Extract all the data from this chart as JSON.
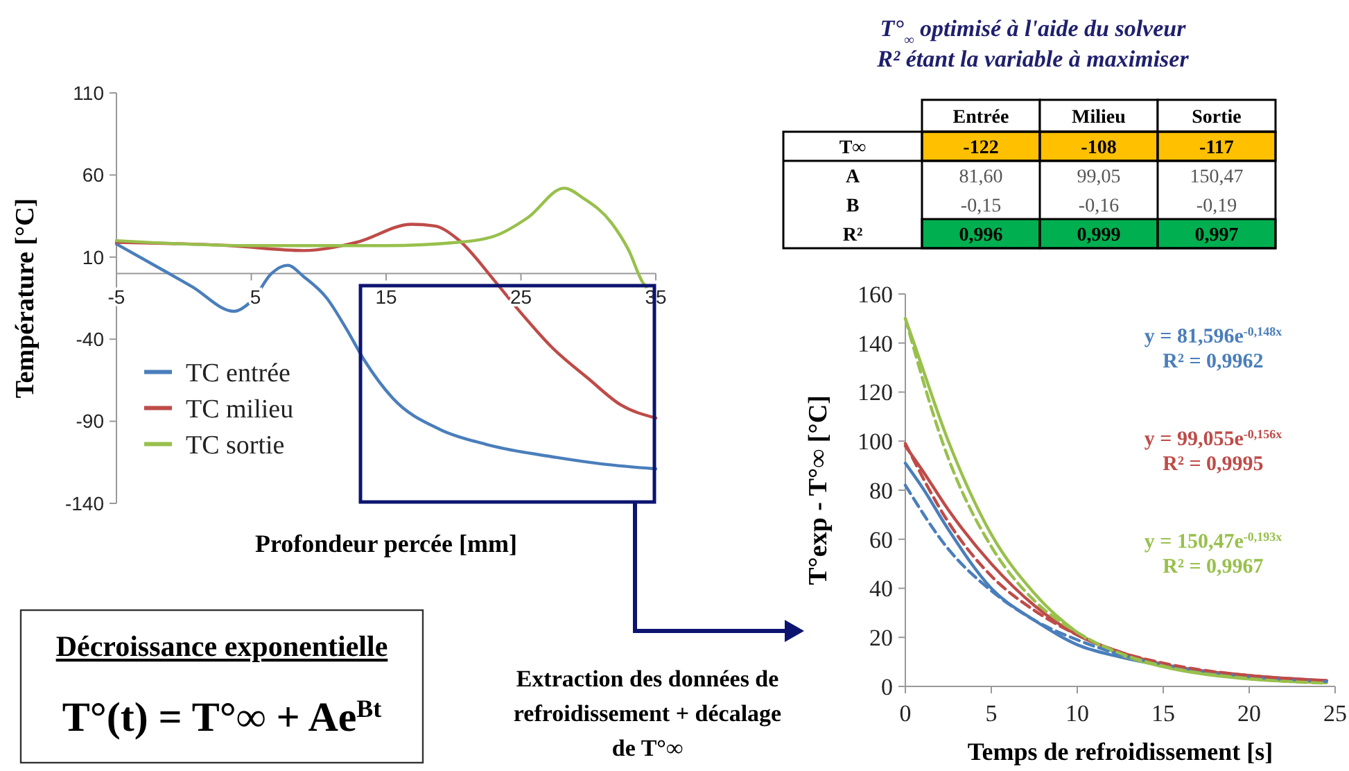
{
  "chart_data": [
    {
      "type": "line",
      "xlabel": "Profondeur percée [mm]",
      "ylabel": "Température [°C]",
      "xlim": [
        -5,
        35
      ],
      "ylim": [
        -140,
        110
      ],
      "xticks": [
        -5,
        5,
        15,
        25,
        35
      ],
      "yticks": [
        -140,
        -90,
        -40,
        10,
        60,
        110
      ],
      "legend": "left",
      "grid": false,
      "annotations": [
        "Extraction des données de refroidissement + décalage de T°∞"
      ],
      "series": [
        {
          "name": "TC entrée",
          "color": "#4a7ebb",
          "x": [
            -5,
            -1.1,
            0.6,
            3.7,
            5.1,
            6.5,
            7.7,
            8.9,
            10.6,
            12,
            13.4,
            15.5,
            19,
            22.4,
            27.6,
            31,
            35
          ],
          "values": [
            18,
            0,
            -8,
            -23,
            -16,
            0,
            5,
            -2,
            -15,
            -33,
            -53,
            -76,
            -95,
            -104,
            -112,
            -116,
            -119
          ]
        },
        {
          "name": "TC milieu",
          "color": "#be4b48",
          "x": [
            -5,
            3.4,
            8.9,
            12.8,
            16.9,
            18.6,
            20.3,
            23.1,
            24.8,
            27.3,
            30,
            32.4,
            35
          ],
          "values": [
            19,
            17,
            14,
            19,
            30,
            29,
            21,
            -5,
            -22,
            -45,
            -64,
            -80,
            -88
          ]
        },
        {
          "name": "TC sortie",
          "color": "#98c04c",
          "x": [
            -5,
            5,
            15,
            20.3,
            23.1,
            25.5,
            28.2,
            29.6,
            31.7,
            33,
            34,
            34.6
          ],
          "values": [
            20,
            17,
            17,
            19,
            23,
            34,
            52,
            46,
            31,
            14,
            -5,
            -11
          ]
        }
      ]
    },
    {
      "type": "line",
      "xlabel": "Temps de refroidissement [s]",
      "ylabel": "T°exp - T°∞ [°C]",
      "xlim": [
        0,
        25
      ],
      "ylim": [
        0,
        160
      ],
      "xticks": [
        0,
        5,
        10,
        15,
        20,
        25
      ],
      "yticks": [
        0,
        20,
        40,
        60,
        80,
        100,
        120,
        140,
        160
      ],
      "grid": false,
      "legend": false,
      "annotations": [
        "y = 81,596e$^{-0,148x}$",
        "R² = 0,9962",
        "y = 99,055e$^{-0,156x}$",
        "R² = 0,9995",
        "y = 150,47e$^{-0,193x}$",
        "R² = 0,9967"
      ],
      "series": [
        {
          "color": "#4a7ebb",
          "x": [
            0,
            1,
            2.5,
            5,
            7.5,
            10,
            12.5,
            15,
            20,
            24.5
          ],
          "values": [
            91,
            81,
            64,
            40,
            27,
            17,
            12,
            8.5,
            4.3,
            2.3
          ]
        },
        {
          "color": "#be4b48",
          "x": [
            0,
            1,
            2.5,
            5,
            7.5,
            10,
            12.5,
            15,
            20,
            24.5
          ],
          "values": [
            98,
            88,
            72,
            50,
            33,
            21,
            14,
            9,
            4.5,
            2.4
          ]
        },
        {
          "color": "#98c04c",
          "x": [
            0,
            0.5,
            2.5,
            5,
            7.5,
            10,
            12.5,
            15,
            20,
            24.5
          ],
          "values": [
            150,
            140,
            100,
            62,
            38,
            22,
            13,
            8,
            3,
            1.5
          ]
        },
        {
          "color": "#4a7ebb",
          "line_style": "dashed",
          "x": [
            0,
            2.5,
            5,
            7.5,
            10,
            12.5,
            15,
            20,
            24.5
          ],
          "values": [
            82,
            56,
            39,
            27,
            19,
            13,
            9,
            4,
            2
          ]
        },
        {
          "color": "#be4b48",
          "line_style": "dashed",
          "x": [
            0,
            2.5,
            5,
            7.5,
            10,
            12.5,
            15,
            20,
            24.5
          ],
          "values": [
            99,
            67,
            45,
            31,
            21,
            14,
            9.5,
            4.4,
            2.2
          ]
        },
        {
          "color": "#98c04c",
          "line_style": "dashed",
          "x": [
            0,
            2.5,
            5,
            7.5,
            10,
            12.5,
            15,
            20,
            24.5
          ],
          "values": [
            150,
            93,
            57,
            35,
            22,
            13.5,
            8.3,
            3.2,
            1.3
          ]
        }
      ]
    },
    {
      "type": "other",
      "title": "T°$_{∞}$ optimisé à l'aide du solveur",
      "subtitle": "R² étant la variable à maximiser",
      "categories": [
        "Entrée",
        "Milieu",
        "Sortie"
      ],
      "y_categories": [
        "T∞",
        "A",
        "B",
        "R²"
      ],
      "cell_labels": [
        [
          "-122",
          "-108",
          "-117"
        ],
        [
          "81,60",
          "99,05",
          "150,47"
        ],
        [
          "-0,15",
          "-0,16",
          "-0,19"
        ],
        [
          "0,996",
          "0,999",
          "0,997"
        ]
      ],
      "colors": [
        null,
        null,
        null,
        "#ffc000",
        "#ffc000",
        "#ffc000",
        null,
        null,
        null,
        null,
        null,
        null,
        "#00b050",
        "#00b050",
        "#00b050"
      ]
    },
    {
      "type": "other",
      "title": "Décroissance exponentielle",
      "annotations": [
        "T°(t) = T°∞ + Ae$^{Bt}$"
      ]
    }
  ]
}
